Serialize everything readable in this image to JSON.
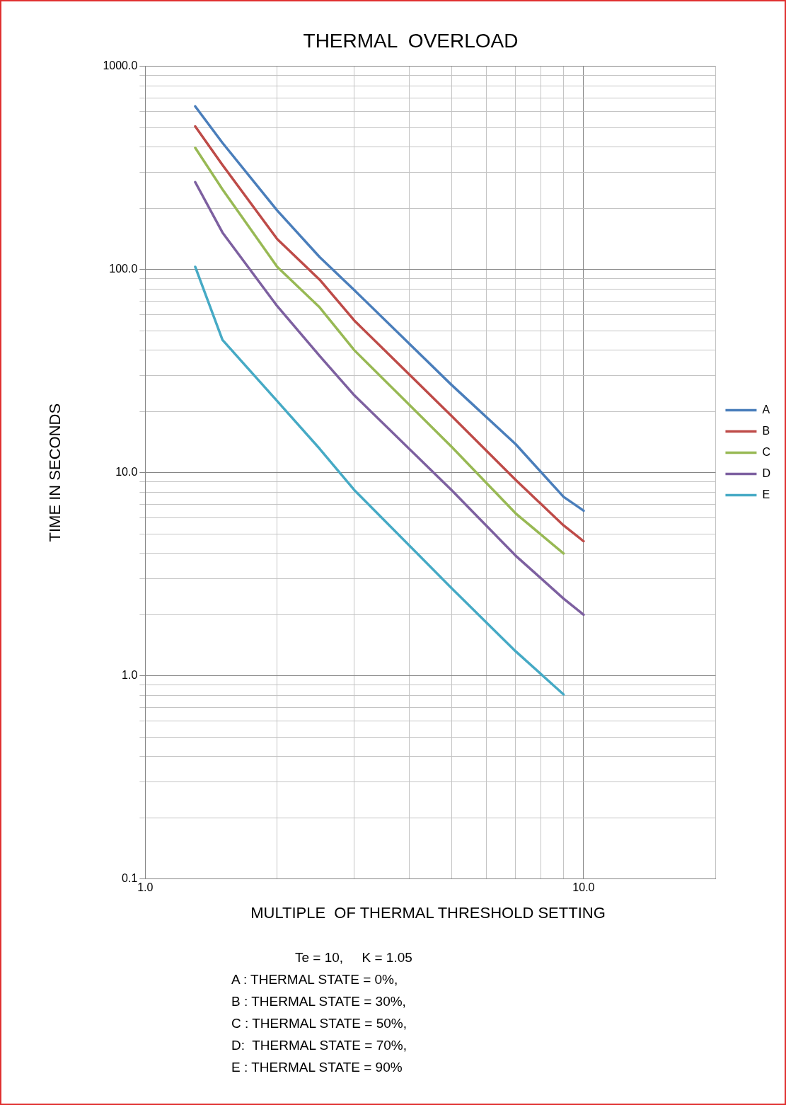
{
  "chart_data": {
    "type": "line",
    "title": "THERMAL  OVERLOAD",
    "xlabel": "MULTIPLE  OF THERMAL THRESHOLD SETTING",
    "ylabel": "TIME IN SECONDS",
    "log": "xy",
    "grid": true,
    "legend": "right",
    "marker": "none",
    "line_style": "solid",
    "xlim": [
      1,
      20
    ],
    "xticks": [
      {
        "value": 1,
        "label": "1.0"
      },
      {
        "value": 2,
        "label": null
      },
      {
        "value": 3,
        "label": null
      },
      {
        "value": 4,
        "label": null
      },
      {
        "value": 5,
        "label": null
      },
      {
        "value": 6,
        "label": null
      },
      {
        "value": 7,
        "label": null
      },
      {
        "value": 8,
        "label": null
      },
      {
        "value": 9,
        "label": null
      },
      {
        "value": 10,
        "label": "10.0"
      },
      {
        "value": 20,
        "label": null
      }
    ],
    "ylim": [
      0.1,
      1000
    ],
    "yticks": [
      {
        "value": 0.1,
        "label": "0.1"
      },
      {
        "value": 0.2,
        "label": null
      },
      {
        "value": 0.3,
        "label": null
      },
      {
        "value": 0.4,
        "label": null
      },
      {
        "value": 0.5,
        "label": null
      },
      {
        "value": 0.6,
        "label": null
      },
      {
        "value": 0.7,
        "label": null
      },
      {
        "value": 0.8,
        "label": null
      },
      {
        "value": 0.9,
        "label": null
      },
      {
        "value": 1,
        "label": "1.0"
      },
      {
        "value": 2,
        "label": null
      },
      {
        "value": 3,
        "label": null
      },
      {
        "value": 4,
        "label": null
      },
      {
        "value": 5,
        "label": null
      },
      {
        "value": 6,
        "label": null
      },
      {
        "value": 7,
        "label": null
      },
      {
        "value": 8,
        "label": null
      },
      {
        "value": 9,
        "label": null
      },
      {
        "value": 10,
        "label": "10.0"
      },
      {
        "value": 20,
        "label": null
      },
      {
        "value": 30,
        "label": null
      },
      {
        "value": 40,
        "label": null
      },
      {
        "value": 50,
        "label": null
      },
      {
        "value": 60,
        "label": null
      },
      {
        "value": 70,
        "label": null
      },
      {
        "value": 80,
        "label": null
      },
      {
        "value": 90,
        "label": null
      },
      {
        "value": 100,
        "label": "100.0"
      },
      {
        "value": 200,
        "label": null
      },
      {
        "value": 300,
        "label": null
      },
      {
        "value": 400,
        "label": null
      },
      {
        "value": 500,
        "label": null
      },
      {
        "value": 600,
        "label": null
      },
      {
        "value": 700,
        "label": null
      },
      {
        "value": 800,
        "label": null
      },
      {
        "value": 900,
        "label": null
      },
      {
        "value": 1000,
        "label": "1000.0"
      }
    ],
    "series": [
      {
        "name": "A",
        "color": "#4a7ebb",
        "x": [
          1.3,
          1.5,
          2,
          2.5,
          3,
          5,
          7,
          9,
          10
        ],
        "values": [
          635,
          420,
          195,
          115,
          79,
          27,
          13.8,
          7.6,
          6.5
        ]
      },
      {
        "name": "B",
        "color": "#be4b48",
        "x": [
          1.3,
          1.5,
          2,
          2.5,
          3,
          5,
          7,
          9,
          10
        ],
        "values": [
          506,
          327,
          141,
          89,
          56,
          19,
          9.2,
          5.5,
          4.6
        ]
      },
      {
        "name": "C",
        "color": "#98b954",
        "x": [
          1.3,
          1.5,
          2,
          2.5,
          3,
          5,
          7,
          9
        ],
        "values": [
          397,
          248,
          103,
          65,
          40,
          13.4,
          6.3,
          4.0
        ]
      },
      {
        "name": "D",
        "color": "#7d60a0",
        "x": [
          1.3,
          1.5,
          2,
          2.5,
          3,
          5,
          7,
          9,
          10
        ],
        "values": [
          269,
          152,
          66,
          37.5,
          24,
          8.2,
          3.9,
          2.4,
          2.0
        ]
      },
      {
        "name": "E",
        "color": "#46aac5",
        "x": [
          1.3,
          1.5,
          2,
          2.5,
          3,
          5,
          7,
          9
        ],
        "values": [
          103,
          45,
          22.5,
          13.1,
          8.2,
          2.7,
          1.32,
          0.81
        ]
      }
    ],
    "annotations": [
      "Te = 10,     K = 1.05",
      "A : THERMAL STATE = 0%,",
      "B : THERMAL STATE = 30%,",
      "C : THERMAL STATE = 50%,",
      "D:  THERMAL STATE = 70%,",
      "E : THERMAL STATE = 90%"
    ]
  }
}
